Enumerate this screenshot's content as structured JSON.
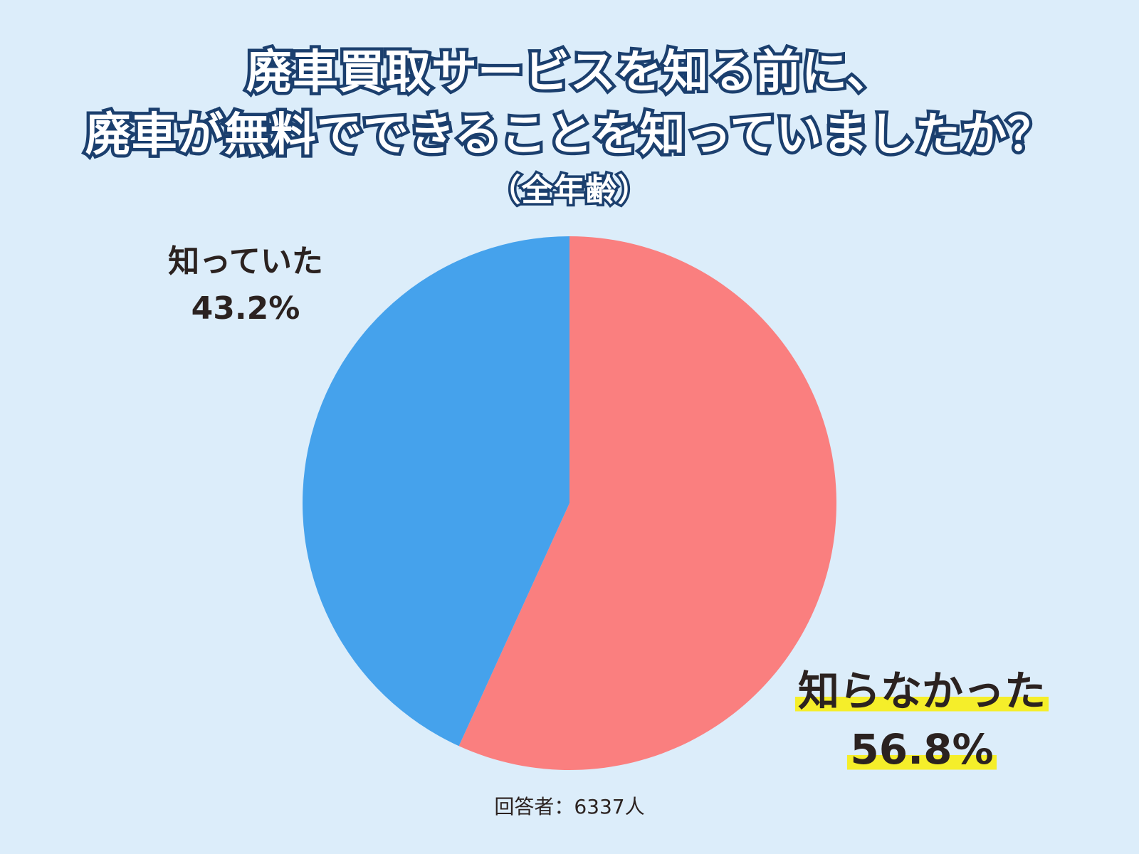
{
  "title": {
    "line1": "廃車買取サービスを知る前に、",
    "line2": "廃車が無料でできることを知っていましたか？",
    "subtitle": "（全年齢）"
  },
  "chart_data": {
    "type": "pie",
    "start": "12 o'clock",
    "direction": "clockwise",
    "slices": [
      {
        "label": "知らなかった",
        "value": 56.8,
        "display": "56.8%",
        "color": "#fa7f7f"
      },
      {
        "label": "知っていた",
        "value": 43.2,
        "display": "43.2%",
        "color": "#45a2ec"
      }
    ]
  },
  "footer": "回答者：6337人"
}
